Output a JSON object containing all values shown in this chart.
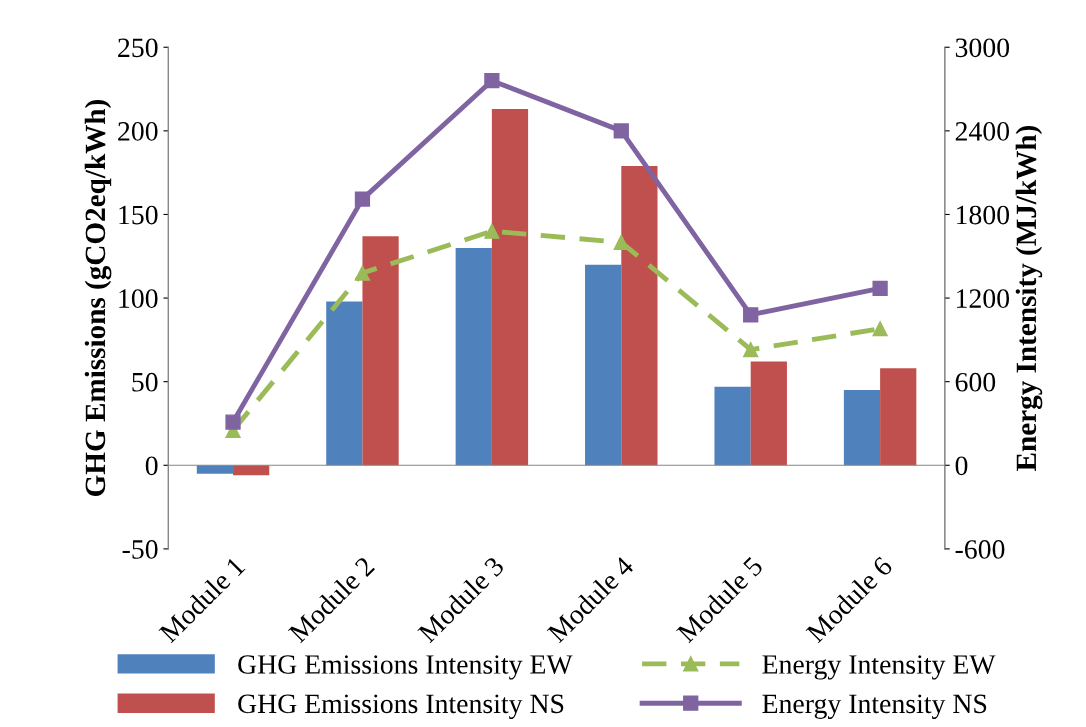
{
  "chart_data": {
    "type": "bar",
    "categories": [
      "Module 1",
      "Module 2",
      "Module 3",
      "Module 4",
      "Module 5",
      "Module 6"
    ],
    "ylabel": "GHG Emissions (gCO2eq/kWh)",
    "y2label": "Energy Intensity (MJ/kWh)",
    "ylim": [
      -50,
      250
    ],
    "yticks": [
      -50,
      0,
      50,
      100,
      150,
      200,
      250
    ],
    "y2lim": [
      -600,
      3000
    ],
    "y2ticks": [
      -600,
      0,
      600,
      1200,
      1800,
      2400,
      3000
    ],
    "legend": "bottom",
    "series": [
      {
        "name": "GHG Emissions Intensity EW",
        "type": "bar",
        "color": "#4f81bd",
        "values": [
          -5,
          98,
          130,
          120,
          47,
          45
        ]
      },
      {
        "name": "GHG Emissions Intensity NS",
        "type": "bar",
        "color": "#c0504d",
        "values": [
          -6,
          137,
          213,
          179,
          62,
          58
        ]
      },
      {
        "name": "Energy Intensity EW",
        "type": "line",
        "axis": "y2",
        "color": "#9bbb59",
        "marker": "triangle",
        "line_style": "dashed",
        "values": [
          250,
          1380,
          1680,
          1600,
          830,
          980
        ]
      },
      {
        "name": "Energy Intensity NS",
        "type": "line",
        "axis": "y2",
        "color": "#8064a2",
        "marker": "square",
        "line_style": "solid",
        "values": [
          310,
          1910,
          2760,
          2400,
          1080,
          1270
        ]
      }
    ]
  }
}
